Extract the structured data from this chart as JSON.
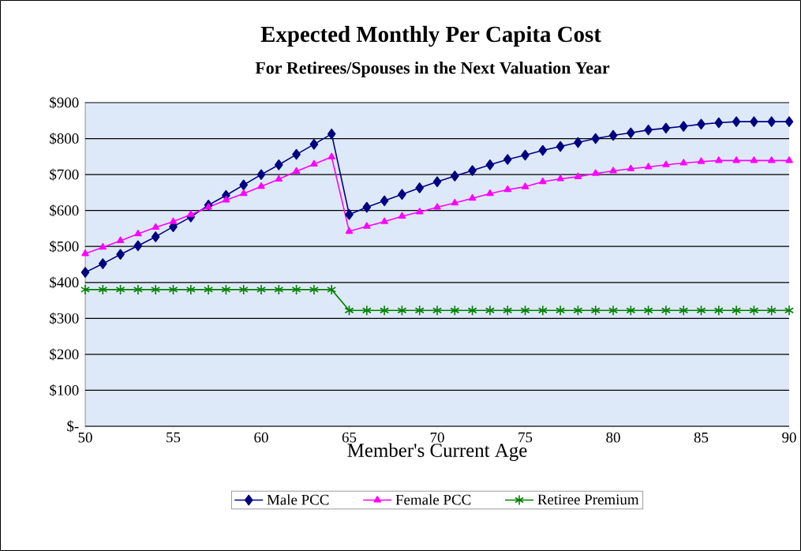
{
  "chart_data": {
    "type": "line",
    "title": "Expected Monthly Per Capita Cost",
    "subtitle": "For Retirees/Spouses in the Next Valuation Year",
    "xlabel": "Member's Current Age",
    "x": [
      50,
      51,
      52,
      53,
      54,
      55,
      56,
      57,
      58,
      59,
      60,
      61,
      62,
      63,
      64,
      65,
      66,
      67,
      68,
      69,
      70,
      71,
      72,
      73,
      74,
      75,
      76,
      77,
      78,
      79,
      80,
      81,
      82,
      83,
      84,
      85,
      86,
      87,
      88,
      89,
      90
    ],
    "series": [
      {
        "name": "Male PCC",
        "color": "#000080",
        "marker": "diamond",
        "values": [
          428,
          452,
          478,
          502,
          527,
          555,
          582,
          615,
          642,
          671,
          700,
          727,
          756,
          784,
          813,
          589,
          609,
          627,
          645,
          663,
          680,
          696,
          711,
          727,
          742,
          754,
          767,
          778,
          789,
          800,
          809,
          816,
          824,
          829,
          834,
          840,
          844,
          847,
          847,
          847,
          847
        ]
      },
      {
        "name": "Female PCC",
        "color": "#ff00ff",
        "marker": "triangle",
        "values": [
          480,
          498,
          516,
          535,
          553,
          569,
          589,
          609,
          629,
          647,
          667,
          687,
          709,
          729,
          749,
          542,
          556,
          569,
          584,
          596,
          609,
          621,
          634,
          647,
          658,
          666,
          680,
          688,
          694,
          703,
          710,
          716,
          721,
          727,
          732,
          736,
          739,
          739,
          739,
          739,
          739
        ]
      },
      {
        "name": "Retiree Premium",
        "color": "#008000",
        "marker": "cross",
        "values": [
          380,
          380,
          380,
          380,
          380,
          380,
          380,
          380,
          380,
          380,
          380,
          380,
          380,
          380,
          380,
          322,
          322,
          322,
          322,
          322,
          322,
          322,
          322,
          322,
          322,
          322,
          322,
          322,
          322,
          322,
          322,
          322,
          322,
          322,
          322,
          322,
          322,
          322,
          322,
          322,
          322
        ]
      }
    ],
    "xlim": [
      50,
      90
    ],
    "xticks": [
      50,
      55,
      60,
      65,
      70,
      75,
      80,
      85,
      90
    ],
    "ylim": [
      0,
      900
    ],
    "yticks": [
      {
        "value": 0,
        "label": "$-"
      },
      {
        "value": 100,
        "label": "$100"
      },
      {
        "value": 200,
        "label": "$200"
      },
      {
        "value": 300,
        "label": "$300"
      },
      {
        "value": 400,
        "label": "$400"
      },
      {
        "value": 500,
        "label": "$500"
      },
      {
        "value": 600,
        "label": "$600"
      },
      {
        "value": 700,
        "label": "$700"
      },
      {
        "value": 800,
        "label": "$800"
      },
      {
        "value": 900,
        "label": "$900"
      }
    ],
    "grid": "y",
    "legend": "bottom",
    "line_style": "solid"
  }
}
